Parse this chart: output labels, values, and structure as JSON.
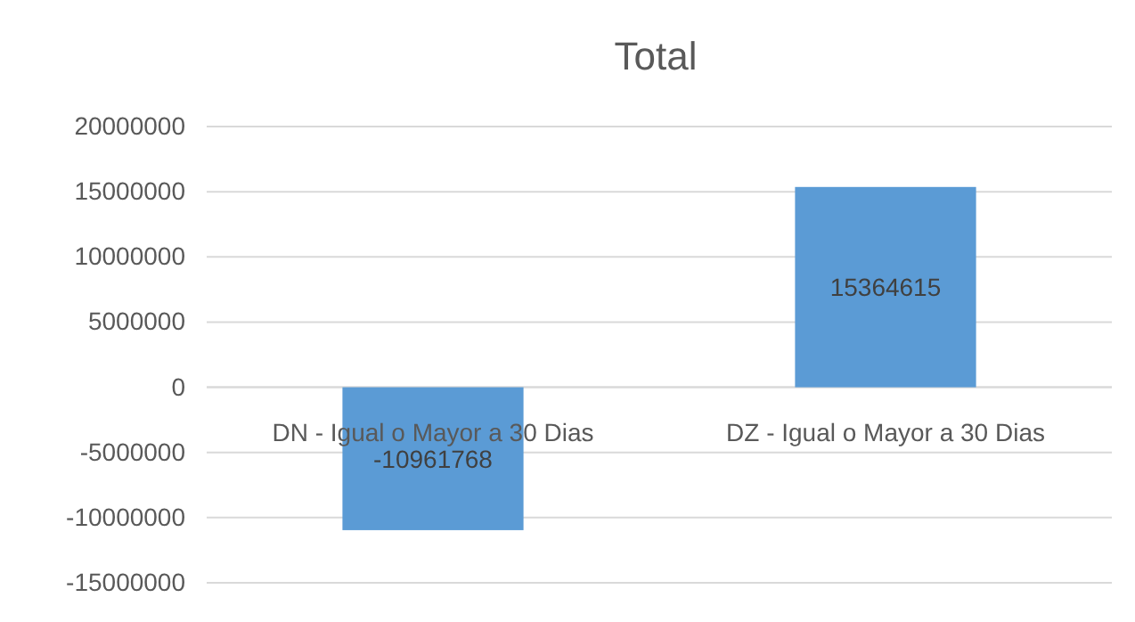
{
  "chart_data": {
    "type": "bar",
    "title": "Total",
    "categories": [
      "DN - Igual o Mayor a 30 Dias",
      "DZ - Igual o Mayor a 30 Dias"
    ],
    "values": [
      -10961768,
      15364615
    ],
    "color": "#5b9bd5",
    "ylim": [
      -15000000,
      20000000
    ],
    "yticks": [
      -15000000,
      -10000000,
      -5000000,
      0,
      5000000,
      10000000,
      15000000,
      20000000
    ],
    "grid": "y",
    "data_labels": true
  }
}
